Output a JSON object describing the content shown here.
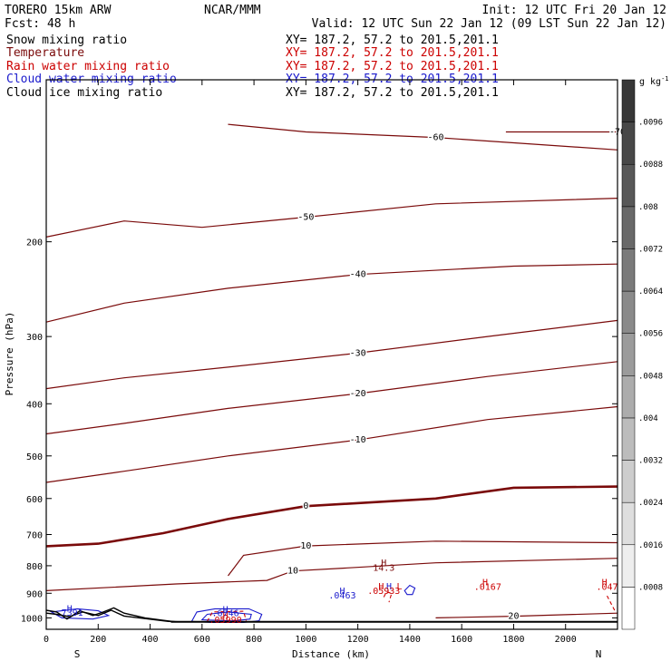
{
  "header": {
    "model": "TORERO  15km ARW",
    "org": "NCAR/MMM",
    "init": "Init: 12 UTC Fri 20 Jan 12",
    "fcst": "Fcst:   48 h",
    "valid": "Valid: 12 UTC Sun 22 Jan 12 (09 LST Sun 22 Jan 12)"
  },
  "legend": [
    {
      "name": "Snow mixing ratio",
      "color": "#000000",
      "xy": ""
    },
    {
      "name": "Temperature",
      "color": "#7a0a0a",
      "xy": "XY= 187.2, 57.2 to 201.5,201.1"
    },
    {
      "name": "Rain water mixing ratio",
      "color": "#cc0000",
      "xy": "XY= 187.2, 57.2 to 201.5,201.1"
    },
    {
      "name": "Cloud water mixing ratio",
      "color": "#1a1acc",
      "xy": "XY= 187.2, 57.2 to 201.5,201.1"
    },
    {
      "name": "Cloud ice mixing ratio",
      "color": "#000000",
      "xy": "XY= 187.2, 57.2 to 201.5,201.1"
    }
  ],
  "snow_xy": "XY= 187.2, 57.2 to 201.5,201.1",
  "chart_data": {
    "type": "line",
    "title": "",
    "xlabel": "Distance (km)",
    "ylabel": "Pressure (hPa)",
    "xlim": [
      0,
      2200
    ],
    "ylim": [
      1050,
      100
    ],
    "y_scale": "log",
    "x_ticks": [
      0,
      200,
      400,
      600,
      800,
      1000,
      1200,
      1400,
      1600,
      1800,
      2000
    ],
    "y_ticks": [
      200,
      300,
      400,
      500,
      600,
      700,
      800,
      900,
      1000
    ],
    "x_ends": {
      "left": "S",
      "right": "N"
    },
    "colorbar": {
      "unit": "g kg",
      "unit_sup": "-1",
      "levels": [
        ".0008",
        ".0016",
        ".0024",
        ".0032",
        ".004",
        ".0048",
        ".0056",
        ".0064",
        ".0072",
        ".008",
        ".0088",
        ".0096"
      ]
    },
    "temperature_isotherms": [
      {
        "level": -70,
        "points": [
          [
            1770,
            125
          ],
          [
            2200,
            125
          ]
        ]
      },
      {
        "level": -60,
        "points": [
          [
            700,
            121
          ],
          [
            1000,
            125
          ],
          [
            1500,
            128
          ],
          [
            2200,
            135
          ]
        ]
      },
      {
        "level": -50,
        "points": [
          [
            0,
            196
          ],
          [
            300,
            183
          ],
          [
            600,
            188
          ],
          [
            1000,
            180
          ],
          [
            1500,
            170
          ],
          [
            2200,
            166
          ]
        ]
      },
      {
        "level": -40,
        "points": [
          [
            0,
            282
          ],
          [
            300,
            260
          ],
          [
            700,
            244
          ],
          [
            1200,
            230
          ],
          [
            1800,
            222
          ],
          [
            2200,
            220
          ]
        ]
      },
      {
        "level": -30,
        "points": [
          [
            0,
            375
          ],
          [
            300,
            358
          ],
          [
            700,
            342
          ],
          [
            1200,
            322
          ],
          [
            1700,
            300
          ],
          [
            2200,
            280
          ]
        ]
      },
      {
        "level": -20,
        "points": [
          [
            0,
            455
          ],
          [
            300,
            435
          ],
          [
            700,
            408
          ],
          [
            1200,
            383
          ],
          [
            1700,
            356
          ],
          [
            2200,
            334
          ]
        ]
      },
      {
        "level": -10,
        "points": [
          [
            0,
            560
          ],
          [
            300,
            534
          ],
          [
            700,
            500
          ],
          [
            1200,
            467
          ],
          [
            1700,
            428
          ],
          [
            2200,
            405
          ]
        ]
      },
      {
        "level": 0,
        "points": [
          [
            0,
            736
          ],
          [
            200,
            728
          ],
          [
            450,
            696
          ],
          [
            700,
            655
          ],
          [
            1000,
            620
          ],
          [
            1500,
            600
          ],
          [
            1800,
            573
          ],
          [
            2200,
            570
          ]
        ]
      },
      {
        "level": 10,
        "points": [
          [
            700,
            835
          ],
          [
            760,
            765
          ],
          [
            1000,
            735
          ],
          [
            1500,
            720
          ],
          [
            2200,
            725
          ]
        ]
      },
      {
        "level": 10,
        "points": [
          [
            0,
            890
          ],
          [
            500,
            865
          ],
          [
            850,
            852
          ],
          [
            950,
            818
          ],
          [
            1150,
            808
          ],
          [
            1500,
            790
          ],
          [
            2200,
            775
          ]
        ]
      },
      {
        "level": 20,
        "points": [
          [
            1500,
            1000
          ],
          [
            1800,
            993
          ],
          [
            2200,
            980
          ]
        ]
      }
    ],
    "annotations": [
      {
        "text": "H",
        "x": 1300,
        "y": 800,
        "color": "#7a0a0a"
      },
      {
        "text": "14.3",
        "x": 1300,
        "y": 818,
        "color": "#7a0a0a"
      },
      {
        "text": "H",
        "x": 1140,
        "y": 903,
        "color": "#1a1acc"
      },
      {
        "text": "H",
        "x": 1290,
        "y": 885,
        "color": "#cc0000"
      },
      {
        "text": "H",
        "x": 1320,
        "y": 885,
        "color": "#1a1acc"
      },
      {
        "text": "L",
        "x": 1360,
        "y": 885,
        "color": "#cc0000"
      },
      {
        "text": "H",
        "x": 1690,
        "y": 870,
        "color": "#cc0000"
      },
      {
        "text": "H",
        "x": 2150,
        "y": 870,
        "color": "#cc0000"
      },
      {
        "text": "H",
        "x": 90,
        "y": 974,
        "color": "#1a1acc"
      },
      {
        "text": "H",
        "x": 690,
        "y": 977,
        "color": "#1a1acc"
      },
      {
        "text": "H",
        "x": 690,
        "y": 1004,
        "color": "#cc0000"
      }
    ],
    "value_labels": [
      {
        "text": ".0463",
        "x": 1140,
        "y": 920,
        "color": "#1a1acc"
      },
      {
        "text": ".05933",
        "x": 1300,
        "y": 902,
        "color": "#cc0000"
      },
      {
        "text": "7391",
        "x": 100,
        "y": 990,
        "color": "#1a1acc"
      },
      {
        "text": ".6746",
        "x": 690,
        "y": 992,
        "color": "#1a1acc"
      },
      {
        "text": ".05990",
        "x": 690,
        "y": 1022,
        "color": "#cc0000"
      },
      {
        "text": ".0167",
        "x": 1700,
        "y": 887,
        "color": "#cc0000"
      },
      {
        "text": ".047",
        "x": 2160,
        "y": 887,
        "color": "#cc0000"
      }
    ],
    "cloud_water_blobs": [
      {
        "points": [
          [
            560,
            1015
          ],
          [
            580,
            975
          ],
          [
            650,
            962
          ],
          [
            780,
            962
          ],
          [
            830,
            985
          ],
          [
            820,
            1012
          ],
          [
            760,
            1020
          ],
          [
            640,
            1020
          ]
        ]
      },
      {
        "points": [
          [
            600,
            1008
          ],
          [
            620,
            985
          ],
          [
            700,
            975
          ],
          [
            790,
            985
          ],
          [
            785,
            1005
          ],
          [
            720,
            1013
          ]
        ]
      },
      {
        "points": [
          [
            20,
            975
          ],
          [
            120,
            962
          ],
          [
            200,
            970
          ],
          [
            240,
            990
          ],
          [
            180,
            1005
          ],
          [
            60,
            1000
          ]
        ]
      },
      {
        "points": [
          [
            1380,
            890
          ],
          [
            1400,
            870
          ],
          [
            1420,
            880
          ],
          [
            1410,
            905
          ],
          [
            1390,
            905
          ]
        ]
      }
    ],
    "rain_blobs": [
      {
        "points": [
          [
            620,
            1015
          ],
          [
            640,
            975
          ],
          [
            760,
            972
          ],
          [
            770,
            1012
          ]
        ]
      },
      {
        "points": [
          [
            1300,
            915
          ],
          [
            1310,
            895
          ],
          [
            1330,
            900
          ],
          [
            1320,
            935
          ]
        ]
      },
      {
        "points": [
          [
            2160,
            910
          ],
          [
            2170,
            930
          ],
          [
            2190,
            970
          ]
        ]
      }
    ],
    "cloud_ice_line": {
      "points": [
        [
          0,
          968
        ],
        [
          40,
          975
        ],
        [
          80,
          1005
        ],
        [
          130,
          970
        ],
        [
          180,
          990
        ],
        [
          220,
          975
        ],
        [
          260,
          958
        ],
        [
          300,
          980
        ],
        [
          380,
          1000
        ],
        [
          460,
          1012
        ],
        [
          500,
          1017
        ],
        [
          2200,
          1017
        ]
      ]
    },
    "snow_line": {
      "points": [
        [
          0,
          980
        ],
        [
          40,
          985
        ],
        [
          90,
          995
        ],
        [
          140,
          975
        ],
        [
          200,
          990
        ],
        [
          250,
          968
        ],
        [
          300,
          992
        ],
        [
          380,
          1003
        ],
        [
          470,
          1015
        ],
        [
          520,
          1017
        ],
        [
          2200,
          1017
        ]
      ]
    },
    "axis_bottom_line": {
      "points": [
        [
          480,
          1017
        ],
        [
          2200,
          1017
        ]
      ]
    }
  }
}
